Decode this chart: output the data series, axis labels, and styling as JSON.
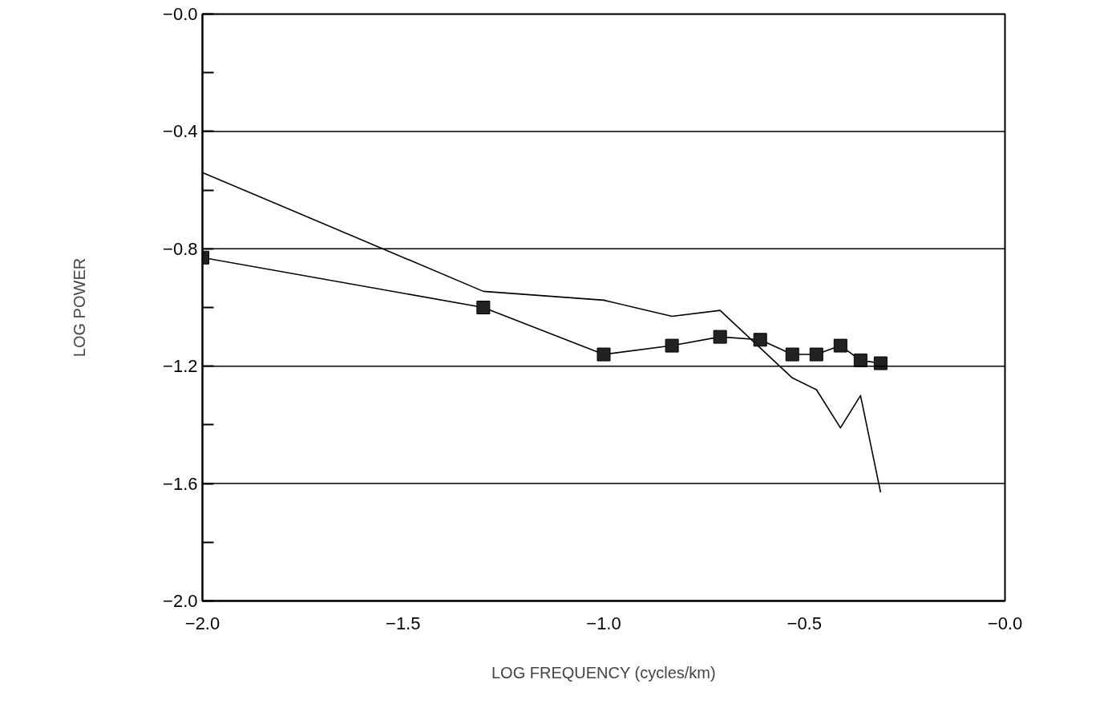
{
  "chart_data": {
    "type": "line",
    "xlabel": "LOG FREQUENCY (cycles/km)",
    "ylabel": "LOG POWER",
    "xlim": [
      -2.0,
      0.0
    ],
    "ylim": [
      -2.0,
      0.0
    ],
    "xticks": [
      {
        "value": -2.0,
        "label": "−2.0"
      },
      {
        "value": -1.5,
        "label": "−1.5"
      },
      {
        "value": -1.0,
        "label": "−1.0"
      },
      {
        "value": -0.5,
        "label": "−0.5"
      },
      {
        "value": 0.0,
        "label": "−0.0"
      }
    ],
    "yticks": [
      {
        "value": 0.0,
        "label": "−0.0"
      },
      {
        "value": -0.2,
        "label": null
      },
      {
        "value": -0.4,
        "label": "−0.4"
      },
      {
        "value": -0.6,
        "label": null
      },
      {
        "value": -0.8,
        "label": "−0.8"
      },
      {
        "value": -1.0,
        "label": null
      },
      {
        "value": -1.2,
        "label": "−1.2"
      },
      {
        "value": -1.4,
        "label": null
      },
      {
        "value": -1.6,
        "label": "−1.6"
      },
      {
        "value": -1.8,
        "label": null
      },
      {
        "value": -2.0,
        "label": "−2.0"
      }
    ],
    "grid": "y",
    "line_style": "solid",
    "series": [
      {
        "color": "#000000",
        "marker": "none",
        "x": [
          -2.0,
          -1.3,
          -1.0,
          -0.83,
          -0.71,
          -0.53,
          -0.47,
          -0.41,
          -0.36,
          -0.31
        ],
        "values": [
          -0.54,
          -0.945,
          -0.975,
          -1.03,
          -1.01,
          -1.24,
          -1.28,
          -1.41,
          -1.3,
          -1.63
        ]
      },
      {
        "color": "#000000",
        "marker": "square",
        "x": [
          -2.0,
          -1.3,
          -1.0,
          -0.83,
          -0.71,
          -0.61,
          -0.53,
          -0.47,
          -0.41,
          -0.36,
          -0.31
        ],
        "values": [
          -0.83,
          -1.0,
          -1.16,
          -1.13,
          -1.1,
          -1.11,
          -1.16,
          -1.16,
          -1.13,
          -1.18,
          -1.19
        ]
      }
    ]
  }
}
